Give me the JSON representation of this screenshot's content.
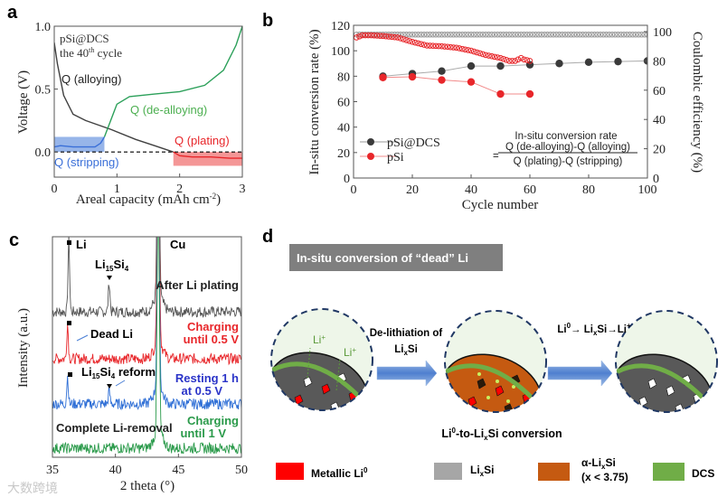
{
  "panels": {
    "a": "a",
    "b": "b",
    "c": "c",
    "d": "d"
  },
  "watermark": "大数跨境",
  "chart_data": [
    {
      "id": "a",
      "type": "line",
      "title": "",
      "xlabel": "Areal capacity (mAh cm",
      "xlabel_sup": "-2",
      "xlabel_end": ")",
      "ylabel": "Voltage (V)",
      "xlim": [
        0,
        3
      ],
      "ylim": [
        -0.2,
        1.0
      ],
      "xticks": [
        "0",
        "1",
        "2",
        "3"
      ],
      "xtick_values": [
        0,
        1,
        2,
        3
      ],
      "yticks": [
        "0.0",
        "0.5",
        "1.0"
      ],
      "ytick_values": [
        0,
        0.5,
        1.0
      ],
      "annotation_sample": "pSi@DCS",
      "annotation_cycle": [
        "the 40",
        "th",
        " cycle"
      ],
      "series": [
        {
          "name": "Q (alloying)",
          "color": "#404040",
          "x": [
            0,
            0.05,
            0.15,
            0.3,
            0.5,
            0.9,
            1.3,
            1.6,
            1.9
          ],
          "y": [
            0.87,
            0.7,
            0.45,
            0.3,
            0.25,
            0.18,
            0.1,
            0.05,
            0.0
          ]
        },
        {
          "name": "Q (stripping)",
          "color": "#3a6fd8",
          "x": [
            0,
            0.1,
            0.3,
            0.65,
            0.74,
            0.8
          ],
          "y": [
            0.04,
            0.05,
            0.04,
            0.04,
            0.07,
            0.12
          ]
        },
        {
          "name": "Q (de-alloying)",
          "color": "#2ca05a",
          "x": [
            0.8,
            0.9,
            1.0,
            1.2,
            1.6,
            2.0,
            2.4,
            2.7,
            2.9,
            3.0
          ],
          "y": [
            0.12,
            0.25,
            0.38,
            0.44,
            0.46,
            0.48,
            0.53,
            0.65,
            0.85,
            1.0
          ]
        },
        {
          "name": "Q (plating)",
          "color": "#e8262a",
          "x": [
            1.9,
            2.0,
            2.2,
            2.5,
            2.8,
            3.0
          ],
          "y": [
            0.0,
            -0.03,
            -0.04,
            -0.04,
            -0.05,
            -0.05
          ]
        }
      ],
      "regions": [
        {
          "name": "stripping",
          "x": [
            0,
            0.8
          ],
          "y": [
            0,
            0.12
          ],
          "color": "#6b95e0"
        },
        {
          "name": "plating",
          "x": [
            1.9,
            3.0
          ],
          "y": [
            -0.11,
            0
          ],
          "color": "#f06a6a"
        }
      ],
      "reference_line": 0
    },
    {
      "id": "b",
      "type": "scatter",
      "xlabel": "Cycle number",
      "ylabel": "In-situ conversion rate (%)",
      "y2label": "Coulombic efficiency (%)",
      "xlim": [
        0,
        100
      ],
      "ylim": [
        0,
        120
      ],
      "y2lim": [
        0,
        100
      ],
      "xticks": [
        "0",
        "20",
        "40",
        "60",
        "80",
        "100"
      ],
      "xtick_values": [
        0,
        20,
        40,
        60,
        80,
        100
      ],
      "yticks": [
        "0",
        "20",
        "40",
        "60",
        "80",
        "100",
        "120"
      ],
      "ytick_values": [
        0,
        20,
        40,
        60,
        80,
        100,
        120
      ],
      "y2ticks": [
        "0",
        "20",
        "40",
        "60",
        "80",
        "100"
      ],
      "y2tick_values": [
        0,
        20,
        40,
        60,
        80,
        100
      ],
      "legend": [
        "pSi@DCS",
        "pSi"
      ],
      "legend_position": "bottom-left",
      "formula": {
        "title": "In-situ conversion rate",
        "eq": "=",
        "numerator": "Q (de-alloying)-Q (alloying)",
        "denominator": "Q (plating)-Q (stripping)"
      },
      "series": [
        {
          "name": "pSi@DCS",
          "axis": "left",
          "color": "#3a3a3a",
          "x": [
            10,
            20,
            30,
            40,
            50,
            60,
            70,
            80,
            90,
            100
          ],
          "y": [
            80,
            82,
            84,
            88,
            88,
            89,
            90,
            91,
            91.5,
            92
          ]
        },
        {
          "name": "pSi",
          "axis": "left",
          "color": "#e8262a",
          "x": [
            10,
            20,
            30,
            40,
            50,
            60
          ],
          "y": [
            79,
            79.5,
            77,
            75.5,
            66,
            66
          ]
        },
        {
          "name": "pSi@DCS CE",
          "axis": "right",
          "color": "#9a9a9a",
          "x_range": [
            1,
            100
          ],
          "y_const": 98
        },
        {
          "name": "pSi CE",
          "axis": "right",
          "color": "#e8262a",
          "x": [
            1,
            3,
            6,
            10,
            15,
            20,
            25,
            30,
            35,
            40,
            45,
            50,
            53,
            55,
            57,
            58,
            60
          ],
          "y": [
            96,
            97.5,
            97.5,
            97,
            96,
            93,
            90.5,
            90,
            89,
            87,
            84,
            82,
            80,
            80,
            82,
            81,
            80
          ]
        }
      ]
    },
    {
      "id": "c",
      "type": "line",
      "xlabel": "2 theta (°)",
      "ylabel": "Intensity (a.u.)",
      "xlim": [
        35,
        50
      ],
      "xticks": [
        "35",
        "40",
        "45",
        "50"
      ],
      "xtick_values": [
        35,
        40,
        45,
        50
      ],
      "peaks_label": {
        "li": "Li",
        "cu": "Cu",
        "li15si4": [
          "Li",
          "15",
          "Si",
          "4"
        ],
        "dead": "Dead Li",
        "reform": [
          "Li",
          "15",
          "Si",
          "4",
          " reform"
        ],
        "complete": "Complete Li-removal"
      },
      "series": [
        {
          "name": "After Li plating",
          "lines": [
            "After Li plating"
          ],
          "color": "#555555",
          "peaks": [
            {
              "x": 36.3,
              "h": 80
            },
            {
              "x": 39.5,
              "h": 33
            },
            {
              "x": 43.4,
              "h": 999
            }
          ]
        },
        {
          "name": "Charging until 0.5 V",
          "lines": [
            "Charging",
            "until 0.5 V"
          ],
          "color": "#e8262a",
          "peaks": [
            {
              "x": 36.2,
              "h": 38
            },
            {
              "x": 43.4,
              "h": 999
            }
          ]
        },
        {
          "name": "Resting 1 h at 0.5 V",
          "lines": [
            "Resting 1 h",
            "at 0.5 V"
          ],
          "color": "#2f6fd6",
          "peaks": [
            {
              "x": 36.2,
              "h": 30
            },
            {
              "x": 39.5,
              "h": 15
            },
            {
              "x": 43.4,
              "h": 999
            }
          ]
        },
        {
          "name": "Charging until 1 V",
          "lines": [
            "Charging",
            "until 1 V"
          ],
          "color": "#2a9a4a",
          "peaks": [
            {
              "x": 43.4,
              "h": 999
            }
          ]
        }
      ]
    }
  ],
  "diagram": {
    "title": "In-situ conversion of “dead” Li",
    "li_plus": "Li",
    "li_plus_sup": "+",
    "arrow1": {
      "l1": "De-lithiation of",
      "l2": [
        "Li",
        "x",
        "Si"
      ]
    },
    "arrow2": [
      "Li",
      "0",
      "→ Li",
      "x",
      "Si→Li",
      "+"
    ],
    "caption": [
      "Li",
      "0",
      "-to-Li",
      "x",
      "Si conversion"
    ],
    "legend": [
      {
        "label": [
          "Metallic  Li",
          "0"
        ],
        "color": "#ff0000"
      },
      {
        "label": [
          "Li",
          "x",
          "Si"
        ],
        "color": "#a6a6a6"
      },
      {
        "label": [
          "α-Li",
          "x",
          "Si"
        ],
        "label2": "(x < 3.75)",
        "color": "#c55a11"
      },
      {
        "label": [
          "DCS"
        ],
        "color": "#70ad47"
      }
    ]
  }
}
